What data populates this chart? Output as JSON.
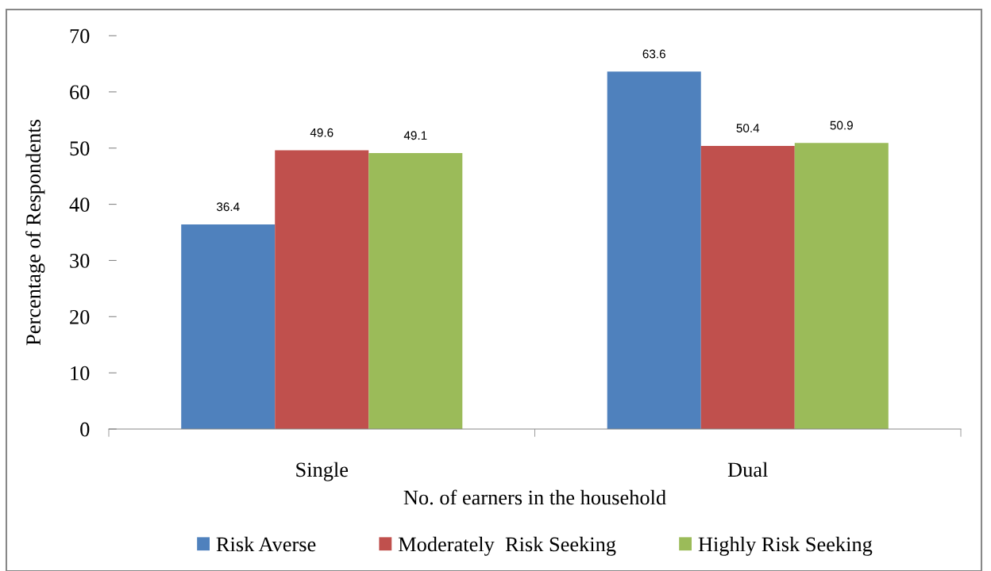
{
  "chart_data": {
    "type": "bar",
    "xlabel": "No. of earners in the household",
    "ylabel": "Percentage of Respondents",
    "categories": [
      "Single",
      "Dual"
    ],
    "series": [
      {
        "name": "Risk Averse",
        "color": "#4f81bd",
        "values": [
          36.4,
          63.6
        ]
      },
      {
        "name": "Moderately  Risk Seeking",
        "color": "#c0504d",
        "values": [
          49.6,
          50.4
        ]
      },
      {
        "name": "Highly Risk Seeking",
        "color": "#9bbb59",
        "values": [
          49.1,
          50.9
        ]
      }
    ],
    "ylim": [
      0,
      70
    ],
    "yticks": [
      0,
      10,
      20,
      30,
      40,
      50,
      60,
      70
    ],
    "data_labels": true,
    "grid": false,
    "legend": "bottom"
  }
}
